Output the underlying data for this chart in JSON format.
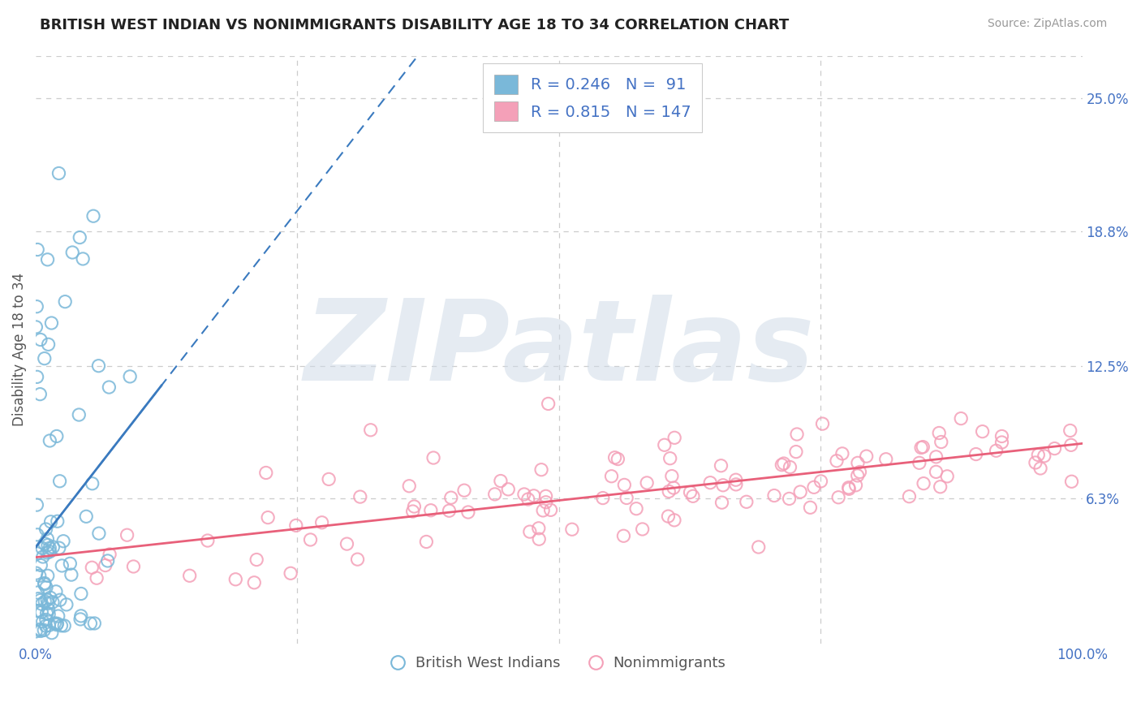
{
  "title": "BRITISH WEST INDIAN VS NONIMMIGRANTS DISABILITY AGE 18 TO 34 CORRELATION CHART",
  "source": "Source: ZipAtlas.com",
  "ylabel": "Disability Age 18 to 34",
  "xlim": [
    0,
    1.0
  ],
  "ylim": [
    -0.005,
    0.27
  ],
  "ytick_positions": [
    0.063,
    0.125,
    0.188,
    0.25
  ],
  "ytick_labels": [
    "6.3%",
    "12.5%",
    "18.8%",
    "25.0%"
  ],
  "blue_R": 0.246,
  "blue_N": 91,
  "pink_R": 0.815,
  "pink_N": 147,
  "blue_color": "#7ab8d9",
  "pink_color": "#f4a0b8",
  "blue_line_color": "#3a7abf",
  "pink_line_color": "#e8607a",
  "label_color": "#4472c4",
  "watermark": "ZIPatlas",
  "watermark_zip_color": "#d0dce8",
  "watermark_atlas_color": "#d0dce8",
  "grid_color": "#cccccc",
  "legend_label_blue": "British West Indians",
  "legend_label_pink": "Nonimmigrants"
}
